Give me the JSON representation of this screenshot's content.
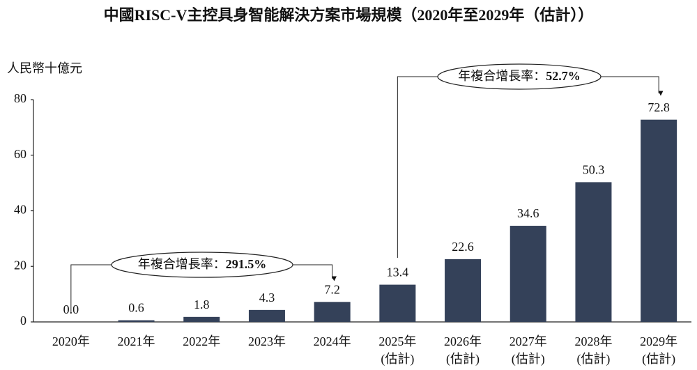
{
  "chart_data": {
    "type": "bar",
    "title": "中國RISC-V主控具身智能解決方案市場規模（2020年至2029年（估計））",
    "y_label": "人民幣十億元",
    "categories": [
      "2020年",
      "2021年",
      "2022年",
      "2023年",
      "2024年",
      "2025年\n(估計)",
      "2026年\n(估計)",
      "2027年\n(估計)",
      "2028年\n(估計)",
      "2029年\n(估計)"
    ],
    "values": [
      0,
      0.6,
      1.8,
      4.3,
      7.2,
      13.4,
      22.6,
      34.6,
      50.3,
      72.8
    ],
    "value_labels": [
      "0.0",
      "0.6",
      "1.8",
      "4.3",
      "7.2",
      "13.4",
      "22.6",
      "34.6",
      "50.3",
      "72.8"
    ],
    "color": "#344159",
    "ylim": [
      0,
      80
    ],
    "yticks": [
      0,
      20,
      40,
      60,
      80
    ],
    "annotations": [
      {
        "label": "年複合增長率：",
        "value": "291.5%"
      },
      {
        "label": "年複合增長率：",
        "value": "52.7%"
      }
    ]
  }
}
